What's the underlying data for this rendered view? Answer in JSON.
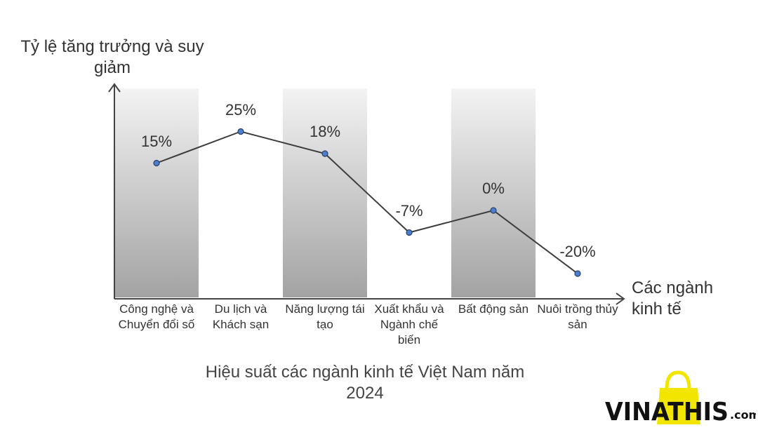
{
  "chart_data": {
    "type": "line",
    "title": "Hiệu suất các ngành kinh tế Việt Nam năm 2024",
    "xlabel": "Các ngành kinh tế",
    "ylabel": "Tỷ lệ tăng trưởng và suy giảm",
    "categories": [
      "Công nghệ và Chuyển đổi số",
      "Du lịch và Khách sạn",
      "Năng lượng tái tạo",
      "Xuất khẩu và Ngành chế biến",
      "Bất động sản",
      "Nuôi trồng thủy sản"
    ],
    "values": [
      15,
      25,
      18,
      -7,
      0,
      -20
    ],
    "value_labels": [
      "15%",
      "25%",
      "18%",
      "-7%",
      "0%",
      "-20%"
    ],
    "ylim": [
      -28,
      40
    ],
    "grid": false,
    "legend": "none"
  },
  "watermark": {
    "text": "VINATHIS",
    "suffix": ".com"
  },
  "colors": {
    "line": "#3d3d3d",
    "marker": "#4a7fd0",
    "band_top": "#f3f3f3",
    "band_bottom": "#a3a3a3",
    "logo_yellow": "#f2e600"
  }
}
